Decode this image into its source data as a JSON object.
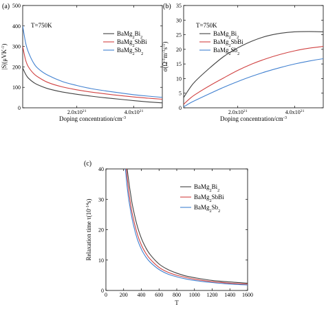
{
  "chart_data": [
    {
      "panel_label": "(a)",
      "type": "line",
      "annotation": "T=750K",
      "xlabel": "Doping concentration/cm",
      "xlabel_sup": "-3",
      "ylabel": "|S|(μVK",
      "ylabel_sup": "-1",
      "ylabel_tail": ")",
      "xlim": [
        1e+20,
        5e+21
      ],
      "ylim": [
        0,
        500
      ],
      "xticks": [
        {
          "value": 2e+21,
          "base": "2.0x10",
          "exp": "21"
        },
        {
          "value": 4e+21,
          "base": "4.0x10",
          "exp": "21"
        }
      ],
      "yticks": [
        0,
        100,
        200,
        300,
        400,
        500
      ],
      "legend_position": "top-right",
      "series": [
        {
          "name": "BaMg",
          "sub1": "2",
          "mid": "Bi",
          "sub2": "2",
          "tail": "",
          "color": "#404040",
          "x": [
            1e+20,
            2e+20,
            3e+20,
            5e+20,
            7e+20,
            1e+21,
            1.5e+21,
            2e+21,
            2.5e+21,
            3e+21,
            3.5e+21,
            4e+21,
            4.5e+21,
            5e+21
          ],
          "y": [
            195,
            165,
            145,
            122,
            108,
            93,
            77,
            66,
            57,
            49,
            42,
            35,
            29,
            24
          ]
        },
        {
          "name": "BaMg",
          "sub1": "2",
          "mid": "SbBi",
          "sub2": "",
          "tail": "",
          "color": "#d04040",
          "x": [
            1e+20,
            2e+20,
            3e+20,
            5e+20,
            7e+20,
            1e+21,
            1.5e+21,
            2e+21,
            2.5e+21,
            3e+21,
            3.5e+21,
            4e+21,
            4.5e+21,
            5e+21
          ],
          "y": [
            300,
            235,
            200,
            165,
            145,
            123,
            102,
            88,
            77,
            68,
            60,
            53,
            47,
            42
          ]
        },
        {
          "name": "BaMg",
          "sub1": "2",
          "mid": "Sb",
          "sub2": "2",
          "tail": "",
          "color": "#4080d0",
          "x": [
            1e+20,
            2e+20,
            3e+20,
            5e+20,
            7e+20,
            1e+21,
            1.5e+21,
            2e+21,
            2.5e+21,
            3e+21,
            3.5e+21,
            4e+21,
            4.5e+21,
            5e+21
          ],
          "y": [
            400,
            320,
            272,
            215,
            185,
            158,
            128,
            109,
            94,
            83,
            73,
            64,
            57,
            51
          ]
        }
      ]
    },
    {
      "panel_label": "(b)",
      "type": "line",
      "annotation": "T=750K",
      "xlabel": "Doping concentration/cm",
      "xlabel_sup": "-3",
      "ylabel": "σ(Ω",
      "ylabel_sup": "-1",
      "ylabel_mid": "m",
      "ylabel_sup2": "-1",
      "ylabel_mid2": "s",
      "ylabel_sup3": "-1",
      "ylabel_tail": ")",
      "xlim": [
        1e+20,
        5e+21
      ],
      "ylim": [
        0,
        35
      ],
      "xticks": [
        {
          "value": 2e+21,
          "base": "2.0x10",
          "exp": "21"
        },
        {
          "value": 4e+21,
          "base": "4.0x10",
          "exp": "21"
        }
      ],
      "yticks": [
        0,
        5,
        10,
        15,
        20,
        25,
        30,
        35
      ],
      "legend_position": "top-left",
      "series": [
        {
          "name": "BaMg",
          "sub1": "2",
          "mid": "Bi",
          "sub2": "2",
          "tail": "",
          "color": "#404040",
          "x": [
            1e+20,
            3e+20,
            5e+20,
            1e+21,
            1.5e+21,
            2e+21,
            2.5e+21,
            3e+21,
            3.5e+21,
            4e+21,
            4.5e+21,
            5e+21
          ],
          "y": [
            3.5,
            6.5,
            9,
            13.5,
            17.5,
            20.5,
            22.8,
            24.5,
            25.5,
            26,
            26.1,
            26
          ]
        },
        {
          "name": "BaMg",
          "sub1": "2",
          "mid": "SbBi",
          "sub2": "",
          "tail": "",
          "color": "#d04040",
          "x": [
            1e+20,
            3e+20,
            5e+20,
            1e+21,
            1.5e+21,
            2e+21,
            2.5e+21,
            3e+21,
            3.5e+21,
            4e+21,
            4.5e+21,
            5e+21
          ],
          "y": [
            1.2,
            3,
            4.5,
            7.5,
            10.2,
            12.8,
            15,
            16.8,
            18.3,
            19.5,
            20.4,
            21
          ]
        },
        {
          "name": "BaMg",
          "sub1": "2",
          "mid": "Sb",
          "sub2": "2",
          "tail": "",
          "color": "#4080d0",
          "x": [
            1e+20,
            3e+20,
            5e+20,
            1e+21,
            1.5e+21,
            2e+21,
            2.5e+21,
            3e+21,
            3.5e+21,
            4e+21,
            4.5e+21,
            5e+21
          ],
          "y": [
            0.3,
            1.5,
            2.5,
            4.8,
            7,
            9,
            10.8,
            12.4,
            13.8,
            15,
            16,
            16.8
          ]
        }
      ]
    },
    {
      "panel_label": "(c)",
      "type": "line",
      "xlabel": "T",
      "ylabel": "Relaxation time τ(10",
      "ylabel_sup": "-14",
      "ylabel_tail": "s)",
      "xlim": [
        0,
        1600
      ],
      "ylim": [
        0,
        40
      ],
      "xticks": [
        {
          "value": 0,
          "base": "0"
        },
        {
          "value": 200,
          "base": "200"
        },
        {
          "value": 400,
          "base": "400"
        },
        {
          "value": 600,
          "base": "600"
        },
        {
          "value": 800,
          "base": "800"
        },
        {
          "value": 1000,
          "base": "1000"
        },
        {
          "value": 1200,
          "base": "1200"
        },
        {
          "value": 1400,
          "base": "1400"
        },
        {
          "value": 1600,
          "base": "1600"
        }
      ],
      "yticks": [
        0,
        10,
        20,
        30,
        40
      ],
      "legend_position": "top-right",
      "series": [
        {
          "name": "BaMg",
          "sub1": "2",
          "mid": "Bi",
          "sub2": "2",
          "tail": "",
          "color": "#404040",
          "x": [
            240,
            260,
            280,
            300,
            350,
            400,
            450,
            500,
            600,
            700,
            800,
            900,
            1000,
            1200,
            1400,
            1600
          ],
          "y": [
            40,
            35.5,
            31.5,
            28,
            21.6,
            17.2,
            14.1,
            11.8,
            8.7,
            6.9,
            5.7,
            4.8,
            4.2,
            3.3,
            2.8,
            2.4
          ]
        },
        {
          "name": "BaMg",
          "sub1": "2",
          "mid": "SbBi",
          "sub2": "",
          "tail": "",
          "color": "#d04040",
          "x": [
            230,
            250,
            270,
            300,
            350,
            400,
            450,
            500,
            600,
            700,
            800,
            900,
            1000,
            1200,
            1400,
            1600
          ],
          "y": [
            40,
            34.5,
            30,
            25,
            19,
            15,
            12.3,
            10.3,
            7.6,
            6,
            5,
            4.3,
            3.7,
            2.9,
            2.4,
            2.1
          ]
        },
        {
          "name": "BaMg",
          "sub1": "2",
          "mid": "Sb",
          "sub2": "2",
          "tail": "",
          "color": "#4080d0",
          "x": [
            220,
            240,
            260,
            300,
            350,
            400,
            450,
            500,
            600,
            700,
            800,
            900,
            1000,
            1200,
            1400,
            1600
          ],
          "y": [
            40,
            34,
            29.5,
            23,
            17.3,
            13.6,
            11.1,
            9.3,
            6.9,
            5.4,
            4.5,
            3.8,
            3.3,
            2.6,
            2.1,
            1.8
          ]
        }
      ]
    }
  ]
}
